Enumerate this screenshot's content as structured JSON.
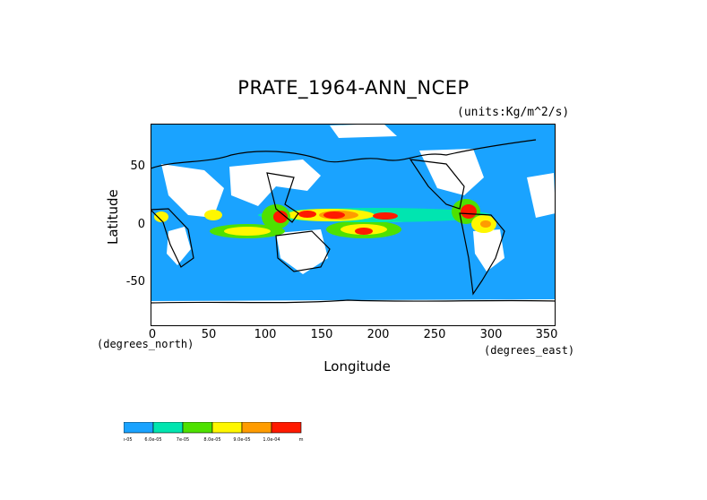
{
  "chart_data": {
    "type": "heatmap",
    "title": "PRATE_1964-ANN_NCEP",
    "units": "(units:Kg/m^2/s)",
    "xlabel": "Longitude",
    "ylabel": "Latitude",
    "x_unit_note": "(degrees_east)",
    "y_unit_note": "(degrees_north)",
    "xlim": [
      0,
      360
    ],
    "ylim": [
      -90,
      90
    ],
    "x_ticks": [
      "0",
      "50",
      "100",
      "150",
      "200",
      "250",
      "300",
      "350"
    ],
    "y_ticks": [
      "50",
      "0",
      "-50"
    ],
    "colorbar": {
      "colors": [
        "#1aa3ff",
        "#00e5b0",
        "#4ee100",
        "#fff700",
        "#ff9c00",
        "#ff1a00"
      ],
      "labels": [
        "5.0e-05",
        "6.0e-05",
        "7e-05",
        "8.0e-05",
        "9.0e-05",
        "1.0e-04",
        "m"
      ]
    }
  }
}
